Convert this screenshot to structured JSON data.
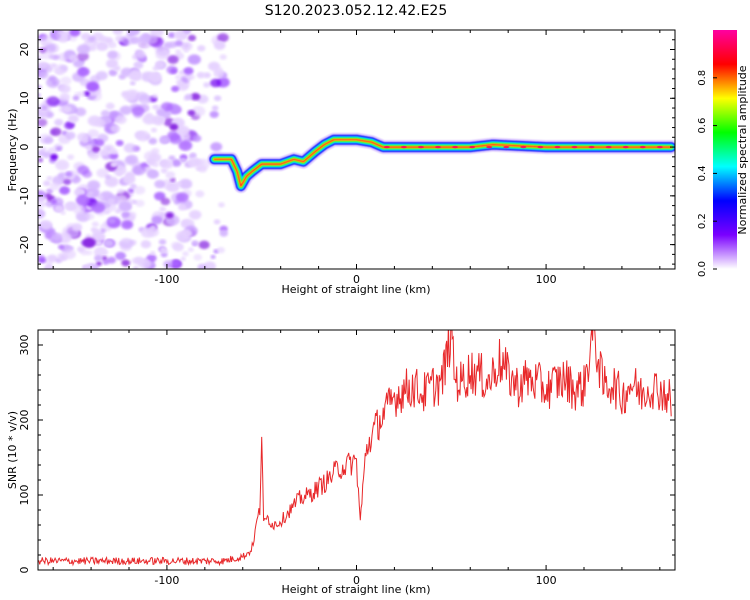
{
  "figure_title": "S120.2023.052.12.42.E25",
  "chart_data": [
    {
      "type": "heatmap",
      "title": "",
      "xlabel": "Height of straight line (km)",
      "ylabel": "Frequency (Hz)",
      "xlim": [
        -168,
        168
      ],
      "ylim": [
        -25,
        24
      ],
      "x_ticks": [
        -100,
        0,
        100
      ],
      "y_ticks": [
        -20,
        -10,
        0,
        10,
        20
      ],
      "grid": false,
      "noise_region": {
        "x_range": [
          -168,
          -70
        ],
        "y_range": [
          -25,
          24
        ]
      },
      "ridge": [
        {
          "x": -75,
          "y": -2.5
        },
        {
          "x": -70,
          "y": -2.5
        },
        {
          "x": -66,
          "y": -2.5
        },
        {
          "x": -63,
          "y": -5
        },
        {
          "x": -61,
          "y": -8
        },
        {
          "x": -58,
          "y": -6
        },
        {
          "x": -55,
          "y": -5
        },
        {
          "x": -50,
          "y": -3.5
        },
        {
          "x": -40,
          "y": -3.5
        },
        {
          "x": -33,
          "y": -2.5
        },
        {
          "x": -28,
          "y": -3
        },
        {
          "x": -22,
          "y": -1
        },
        {
          "x": -17,
          "y": 0.5
        },
        {
          "x": -12,
          "y": 1.5
        },
        {
          "x": 0,
          "y": 1.5
        },
        {
          "x": 8,
          "y": 1
        },
        {
          "x": 14,
          "y": 0
        },
        {
          "x": 25,
          "y": 0
        },
        {
          "x": 60,
          "y": 0
        },
        {
          "x": 72,
          "y": 0.5
        },
        {
          "x": 100,
          "y": 0
        },
        {
          "x": 166,
          "y": 0
        }
      ],
      "colorbar": {
        "label": "Normalized spectral amplitude",
        "range": [
          0,
          1
        ],
        "ticks": [
          "0.0",
          "0.2",
          "0.4",
          "0.6",
          "0.8"
        ],
        "tick_values": [
          0.0,
          0.2,
          0.4,
          0.6,
          0.8
        ],
        "colors": [
          "#ffffff",
          "#7a00ff",
          "#0000ff",
          "#00ffff",
          "#00ff00",
          "#ffff00",
          "#ff0000",
          "#ff00a0"
        ]
      }
    },
    {
      "type": "line",
      "title": "",
      "xlabel": "Height of straight line (km)",
      "ylabel": "SNR (10 * v/v)",
      "xlim": [
        -168,
        168
      ],
      "ylim": [
        0,
        320
      ],
      "x_ticks": [
        -100,
        0,
        100
      ],
      "y_ticks": [
        0,
        100,
        200,
        300
      ],
      "grid": false,
      "series": [
        {
          "color": "#e8282a",
          "x": [
            -168,
            -150,
            -130,
            -110,
            -90,
            -70,
            -60,
            -56,
            -54,
            -53,
            -51,
            -50,
            -49,
            -47,
            -44,
            -40,
            -35,
            -30,
            -25,
            -20,
            -15,
            -10,
            -5,
            0,
            2,
            5,
            10,
            15,
            20,
            25,
            30,
            35,
            40,
            45,
            48,
            50,
            52,
            55,
            60,
            65,
            70,
            75,
            80,
            85,
            90,
            95,
            100,
            105,
            110,
            115,
            120,
            125,
            130,
            135,
            140,
            145,
            150,
            155,
            160,
            165,
            166
          ],
          "y": [
            12,
            12,
            12,
            12,
            12,
            12,
            18,
            25,
            40,
            60,
            80,
            190,
            60,
            70,
            60,
            65,
            80,
            95,
            100,
            110,
            120,
            135,
            140,
            145,
            65,
            160,
            190,
            210,
            230,
            240,
            245,
            235,
            245,
            250,
            290,
            320,
            255,
            250,
            265,
            260,
            250,
            280,
            260,
            245,
            255,
            250,
            240,
            250,
            255,
            240,
            245,
            320,
            245,
            250,
            230,
            250,
            235,
            245,
            240,
            230,
            205
          ]
        }
      ]
    }
  ]
}
